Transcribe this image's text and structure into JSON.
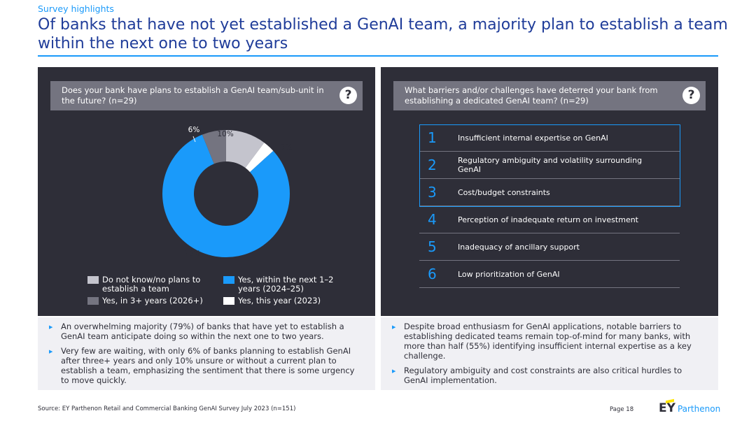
{
  "header": {
    "eyebrow": "Survey highlights",
    "title": "Of banks that have not yet established a GenAI team, a majority plan to establish a team within the next one to two years"
  },
  "left_panel": {
    "question": "Does your bank have plans to establish a GenAI team/sub-unit in the future? (n=29)",
    "help_icon": "question-mark-icon",
    "help_label": "?"
  },
  "right_panel": {
    "question": "What barriers and/or challenges have deterred your bank from establishing a dedicated GenAI team? (n=29)",
    "help_icon": "question-mark-icon",
    "help_label": "?",
    "highlight_color": "#1a9afa",
    "rankings": [
      {
        "rank": "1",
        "text": "Insufficient internal expertise on GenAI"
      },
      {
        "rank": "2",
        "text": "Regulatory ambiguity and volatility surrounding GenAI"
      },
      {
        "rank": "3",
        "text": "Cost/budget constraints"
      },
      {
        "rank": "4",
        "text": "Perception of inadequate return on investment"
      },
      {
        "rank": "5",
        "text": "Inadequacy of ancillary support"
      },
      {
        "rank": "6",
        "text": "Low prioritization of GenAI"
      }
    ]
  },
  "chart_data": {
    "type": "pie",
    "donut": true,
    "legend_position": "bottom",
    "series": [
      {
        "name": "Do not know/no plans to establish a team",
        "value": 10,
        "label": "10%",
        "color": "#c4c4cd"
      },
      {
        "name": "Yes, this year (2023)",
        "value": 3,
        "label": "3%",
        "color": "#ffffff"
      },
      {
        "name": "Yes, within the next 1–2 years (2024–25)",
        "value": 79,
        "label": "79%",
        "color": "#1a9afa"
      },
      {
        "name": "Yes, in 3+ years (2026+)",
        "value": 6,
        "label": "6%",
        "color": "#747480"
      }
    ],
    "legend_order": [
      0,
      2,
      3,
      1
    ]
  },
  "notes_left": [
    "An overwhelming majority (79%) of banks that have yet to establish a GenAI team anticipate doing so within the next one to two years.",
    "Very few are waiting, with only 6% of banks planning to establish GenAI after three+ years and only 10% unsure or without a current plan to establish a team, emphasizing the sentiment that there is some urgency to move quickly."
  ],
  "notes_right": [
    "Despite broad enthusiasm for GenAI applications, notable barriers to establishing dedicated teams remain top-of-mind for many banks, with more than half (55%) identifying insufficient internal expertise as a key challenge.",
    "Regulatory ambiguity and cost constraints are also critical hurdles to GenAI implementation."
  ],
  "footer": {
    "source": "Source: EY Parthenon Retail and Commercial Banking GenAI Survey July 2023 (n=151)",
    "page": "Page 18",
    "logo_ey": "EY",
    "logo_brand": "Parthenon"
  }
}
